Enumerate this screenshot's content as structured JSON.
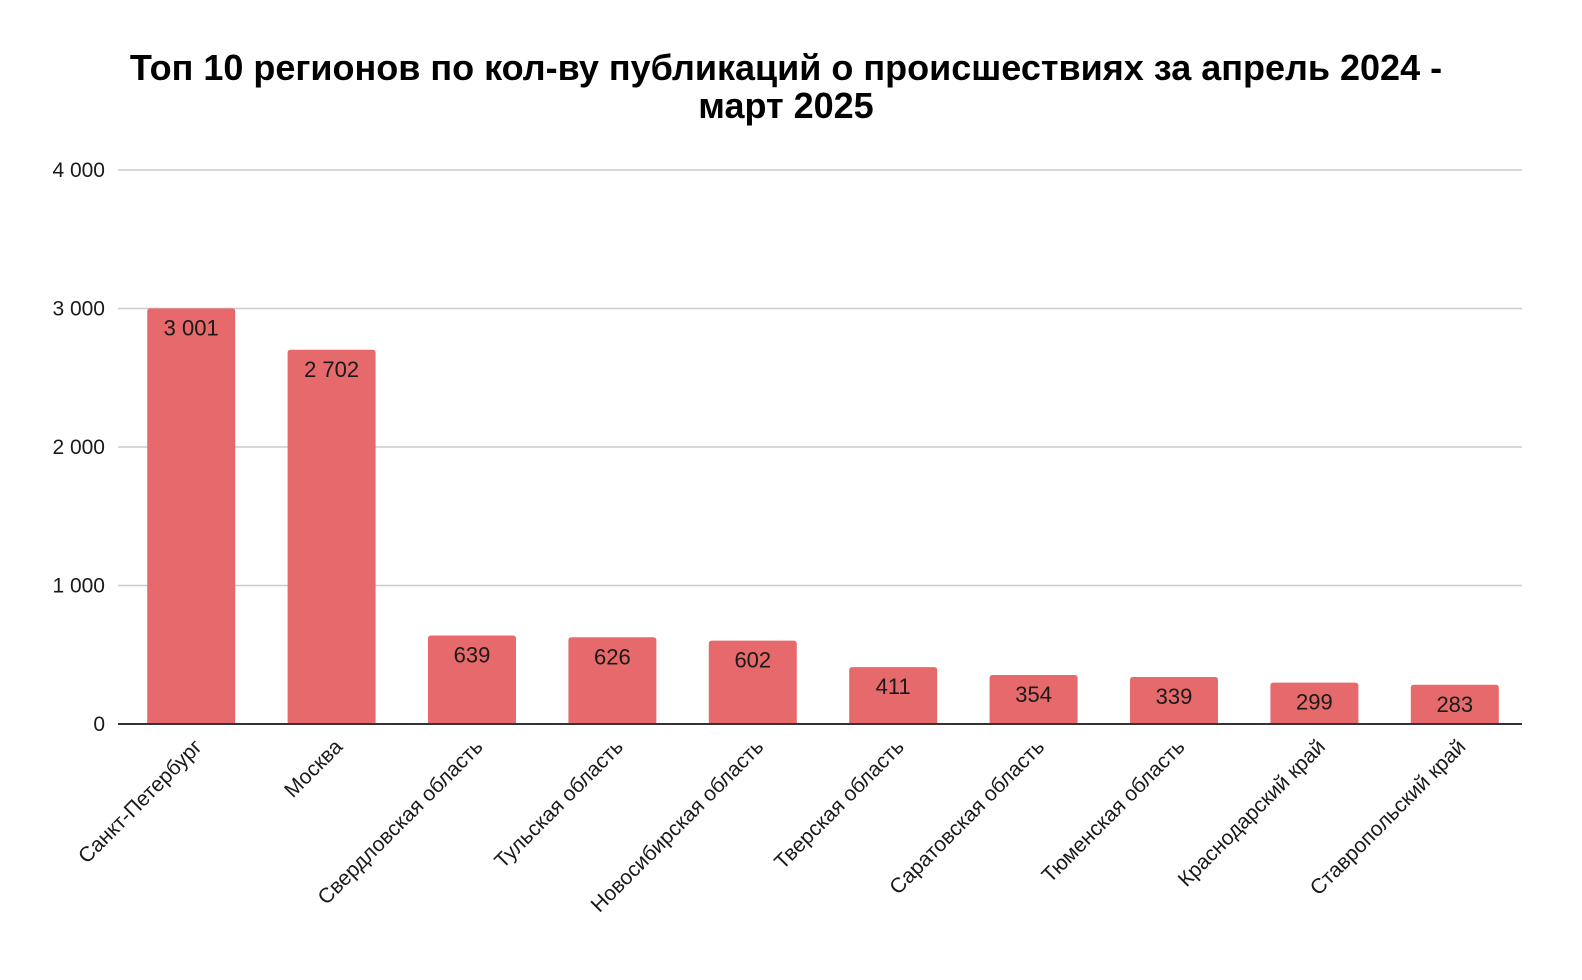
{
  "chart_data": {
    "type": "bar",
    "title_lines": [
      "Топ 10 регионов по кол-ву публикаций о происшествиях за апрель 2024 -",
      "март 2025"
    ],
    "categories": [
      "Санкт-Петербург",
      "Москва",
      "Свердловская область",
      "Тульская область",
      "Новосибирская область",
      "Тверская область",
      "Саратовская область",
      "Тюменская область",
      "Краснодарский край",
      "Ставропольский край"
    ],
    "values": [
      3001,
      2702,
      639,
      626,
      602,
      411,
      354,
      339,
      299,
      283
    ],
    "value_labels": [
      "3 001",
      "2 702",
      "639",
      "626",
      "602",
      "411",
      "354",
      "339",
      "299",
      "283"
    ],
    "ylim": [
      0,
      4000
    ],
    "yticks": [
      0,
      1000,
      2000,
      3000,
      4000
    ],
    "ytick_labels": [
      "0",
      "1 000",
      "2 000",
      "3 000",
      "4 000"
    ],
    "grid": true,
    "legend": "none",
    "xlabel": "",
    "ylabel": "",
    "bar_color": "#e66a6b"
  }
}
